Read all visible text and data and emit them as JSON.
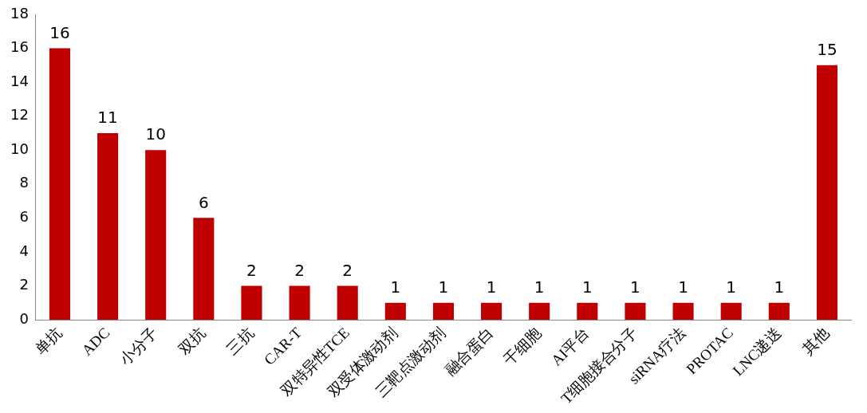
{
  "chart_data": {
    "type": "bar",
    "categories": [
      "单抗",
      "ADC",
      "小分子",
      "双抗",
      "三抗",
      "CAR-T",
      "双特异性TCE",
      "双受体激动剂",
      "三靶点激动剂",
      "融合蛋白",
      "干细胞",
      "AI平台",
      "T细胞接合分子",
      "siRNA疗法",
      "PROTAC",
      "LNC递送",
      "其他"
    ],
    "values": [
      16,
      11,
      10,
      6,
      2,
      2,
      2,
      1,
      1,
      1,
      1,
      1,
      1,
      1,
      1,
      1,
      15
    ],
    "color": "#c00000",
    "ylim": [
      0,
      18
    ],
    "yticks": [
      0,
      2,
      4,
      6,
      8,
      10,
      12,
      14,
      16,
      18
    ],
    "grid": false,
    "legend": false,
    "data_labels": true
  }
}
